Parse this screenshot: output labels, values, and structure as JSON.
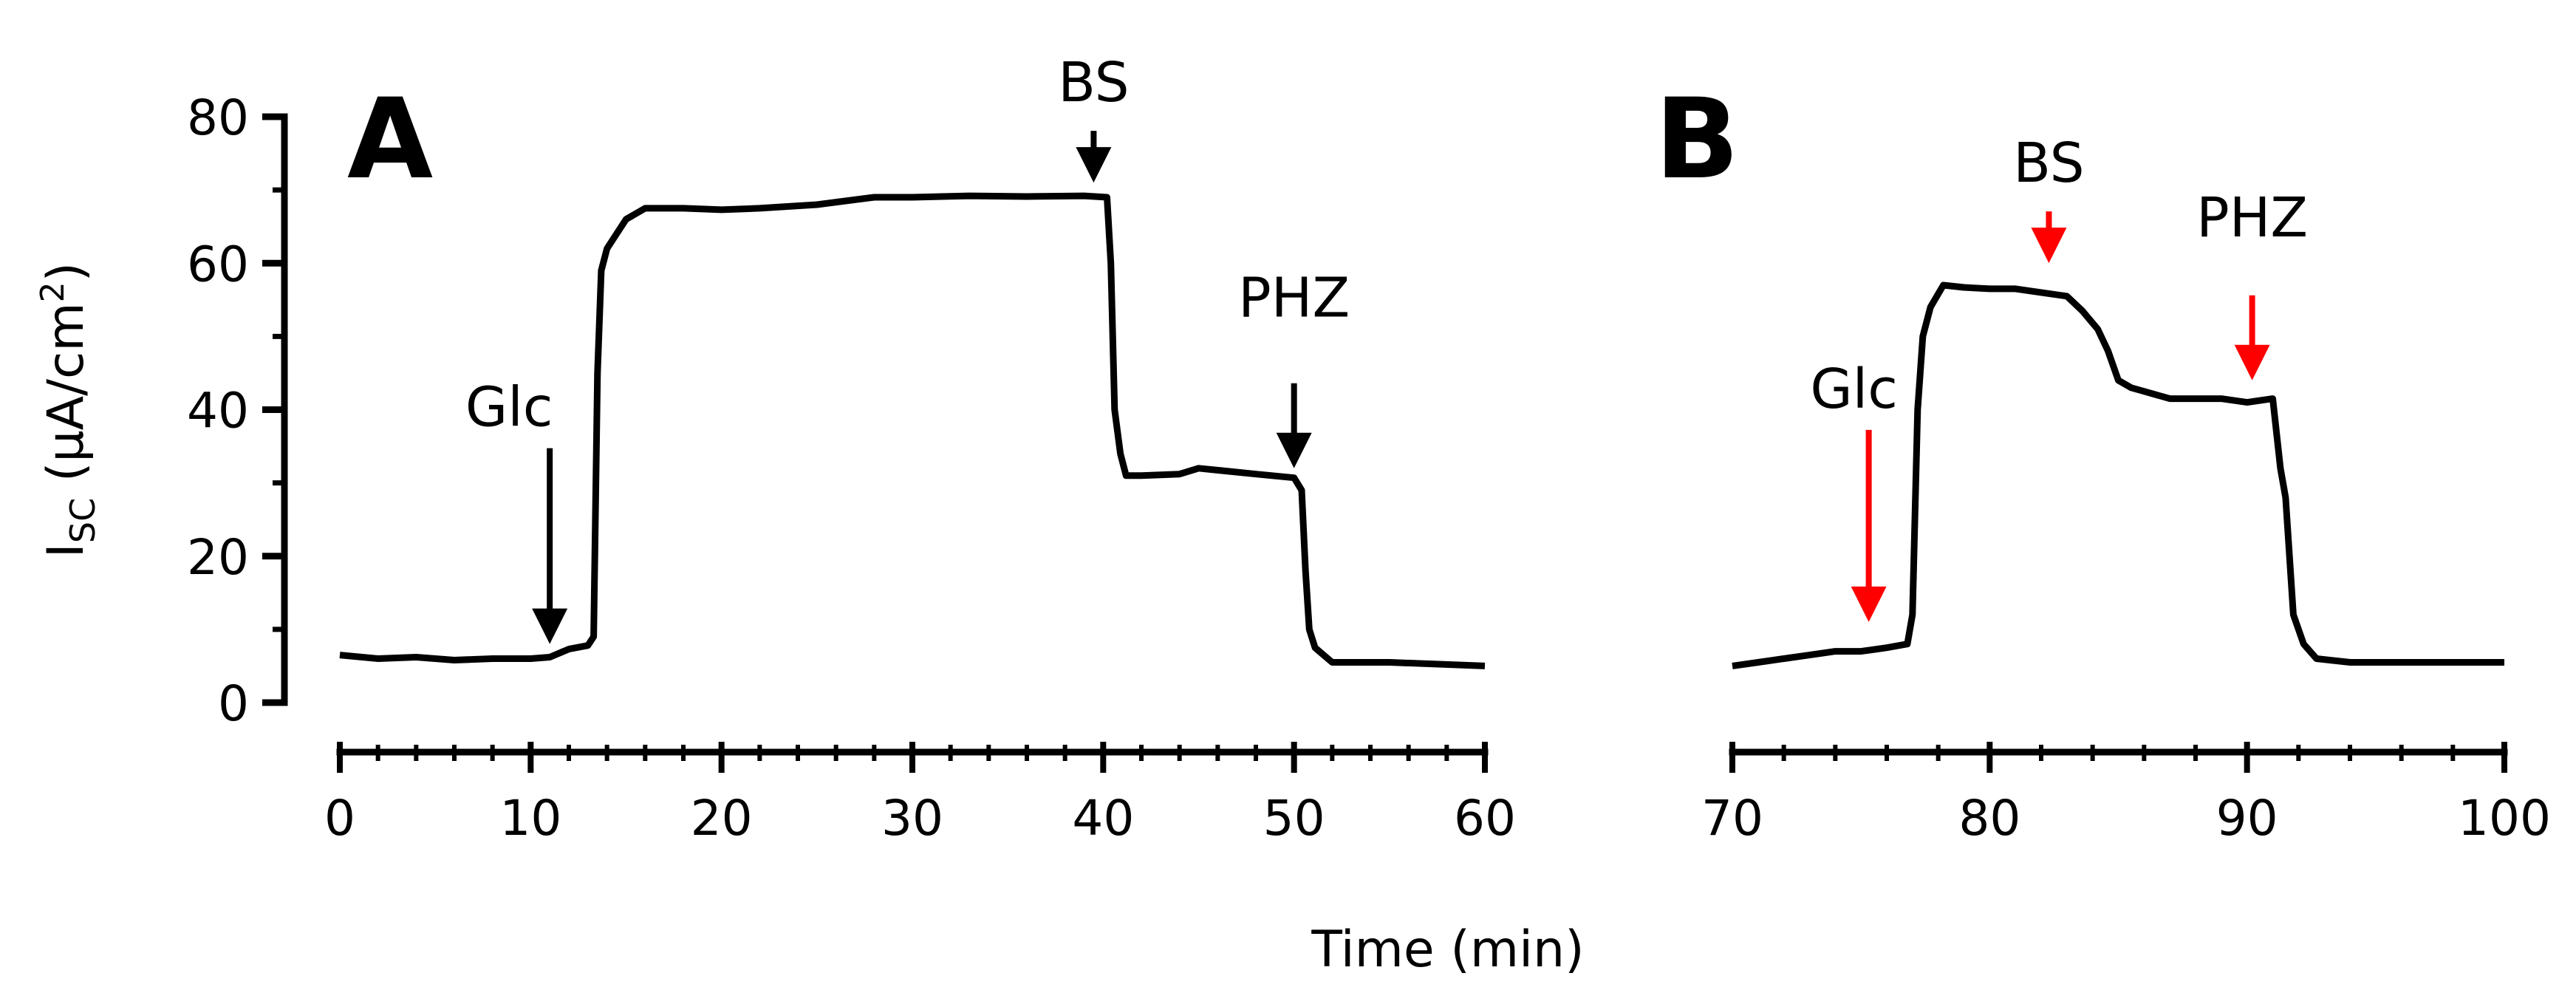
{
  "chart_data": [
    {
      "type": "line",
      "panel_label": "A",
      "ylabel_main": "I",
      "ylabel_sub": "SC",
      "ylabel_units_pre": " (µA/cm",
      "ylabel_units_sup": "2",
      "ylabel_units_post": ")",
      "ylim": [
        0,
        80
      ],
      "yticks": [
        0,
        20,
        40,
        60,
        80
      ],
      "xlim": [
        0,
        60
      ],
      "xticks": [
        0,
        10,
        20,
        30,
        40,
        50,
        60
      ],
      "grid": false,
      "annotations": [
        {
          "text": "Glc",
          "x": 11,
          "y": 7,
          "color": "#000000"
        },
        {
          "text": "BS",
          "x": 39.5,
          "y": 70,
          "color": "#000000"
        },
        {
          "text": "PHZ",
          "x": 50,
          "y": 31,
          "color": "#000000"
        }
      ],
      "series": [
        {
          "color": "#000000",
          "points": [
            [
              0,
              6.5
            ],
            [
              2,
              6
            ],
            [
              4,
              6.2
            ],
            [
              6,
              5.8
            ],
            [
              8,
              6
            ],
            [
              10,
              6
            ],
            [
              11,
              6.2
            ],
            [
              12,
              7.3
            ],
            [
              13,
              7.8
            ],
            [
              13.3,
              9
            ],
            [
              13.5,
              45
            ],
            [
              13.7,
              59
            ],
            [
              14,
              62
            ],
            [
              14.5,
              64
            ],
            [
              15,
              66
            ],
            [
              16,
              67.5
            ],
            [
              18,
              67.5
            ],
            [
              20,
              67.3
            ],
            [
              22,
              67.5
            ],
            [
              25,
              68
            ],
            [
              28,
              69
            ],
            [
              30,
              69
            ],
            [
              33,
              69.2
            ],
            [
              36,
              69.1
            ],
            [
              39,
              69.2
            ],
            [
              40.2,
              69
            ],
            [
              40.4,
              60
            ],
            [
              40.6,
              40
            ],
            [
              40.9,
              34
            ],
            [
              41.2,
              31
            ],
            [
              42,
              31
            ],
            [
              44,
              31.2
            ],
            [
              45,
              32
            ],
            [
              48,
              31.2
            ],
            [
              50,
              30.7
            ],
            [
              50.4,
              29
            ],
            [
              50.6,
              18
            ],
            [
              50.8,
              10
            ],
            [
              51.1,
              7.5
            ],
            [
              52,
              5.5
            ],
            [
              55,
              5.5
            ],
            [
              60,
              5
            ]
          ]
        }
      ]
    },
    {
      "type": "line",
      "panel_label": "B",
      "xlim": [
        70,
        100
      ],
      "xticks": [
        70,
        80,
        90,
        100
      ],
      "ylim": [
        0,
        80
      ],
      "grid": false,
      "annotations": [
        {
          "text": "Glc",
          "x": 75.3,
          "y": 10,
          "color": "#ff0000"
        },
        {
          "text": "BS",
          "x": 82.3,
          "y": 59,
          "color": "#ff0000"
        },
        {
          "text": "PHZ",
          "x": 90.2,
          "y": 43,
          "color": "#ff0000"
        }
      ],
      "series": [
        {
          "color": "#000000",
          "points": [
            [
              70,
              5
            ],
            [
              71,
              5.5
            ],
            [
              72,
              6
            ],
            [
              73,
              6.5
            ],
            [
              74,
              7
            ],
            [
              75,
              7
            ],
            [
              76,
              7.5
            ],
            [
              76.8,
              8
            ],
            [
              77,
              12
            ],
            [
              77.2,
              40
            ],
            [
              77.4,
              50
            ],
            [
              77.7,
              54
            ],
            [
              78.2,
              57
            ],
            [
              79,
              56.7
            ],
            [
              80,
              56.5
            ],
            [
              81,
              56.5
            ],
            [
              82,
              56
            ],
            [
              83,
              55.5
            ],
            [
              83.6,
              53.5
            ],
            [
              84.2,
              51
            ],
            [
              84.6,
              48
            ],
            [
              85,
              44
            ],
            [
              85.5,
              43
            ],
            [
              86,
              42.5
            ],
            [
              87,
              41.5
            ],
            [
              88,
              41.5
            ],
            [
              89,
              41.5
            ],
            [
              90,
              41
            ],
            [
              91,
              41.5
            ],
            [
              91.3,
              32
            ],
            [
              91.5,
              28
            ],
            [
              91.8,
              12
            ],
            [
              92.2,
              8
            ],
            [
              92.7,
              6
            ],
            [
              94,
              5.5
            ],
            [
              96,
              5.5
            ],
            [
              98,
              5.5
            ],
            [
              100,
              5.5
            ]
          ]
        }
      ]
    }
  ],
  "xaxis_title": "Time (min)"
}
